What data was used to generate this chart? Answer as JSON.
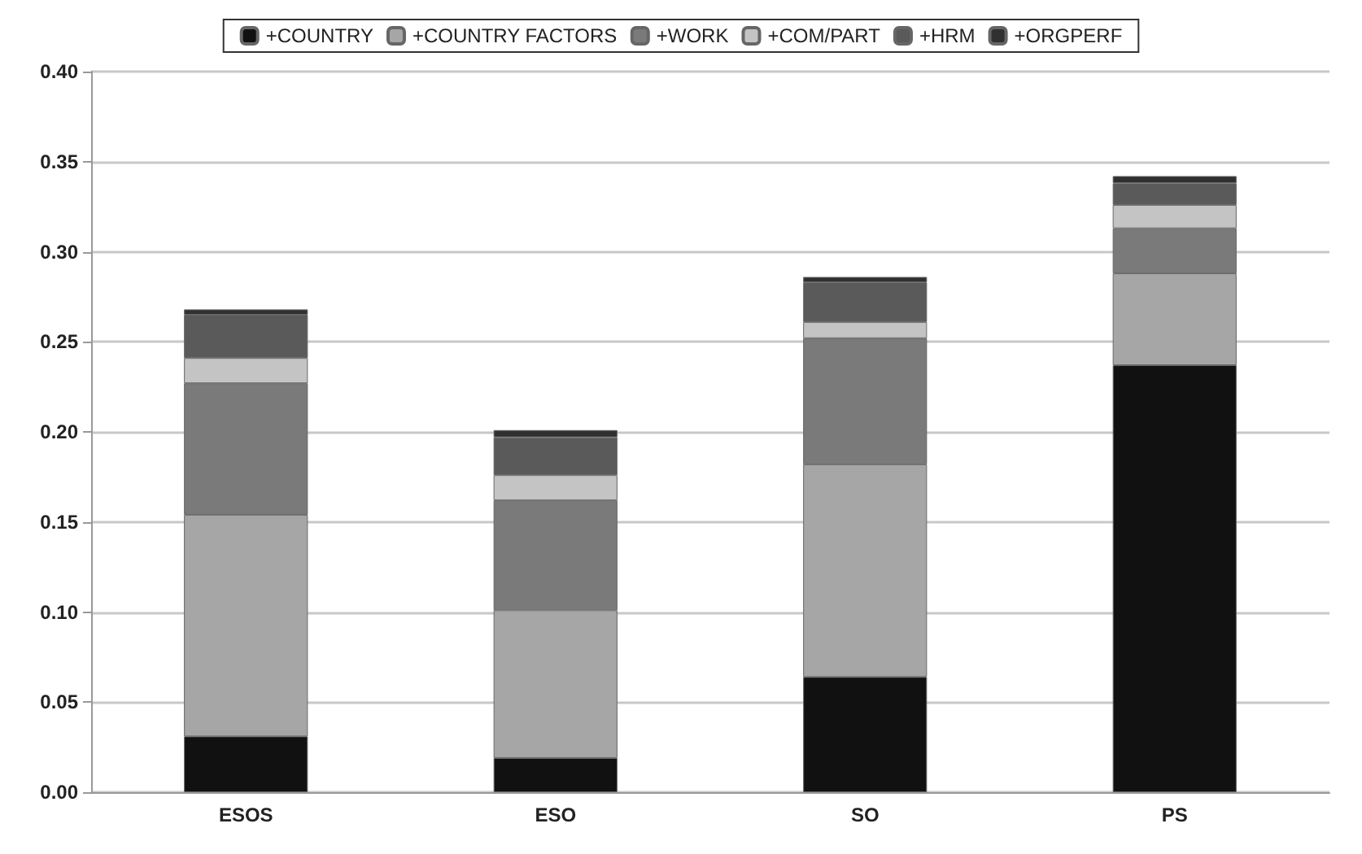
{
  "chart_data": {
    "type": "bar",
    "stacked": true,
    "categories": [
      "ESOS",
      "ESO",
      "SO",
      "PS"
    ],
    "series": [
      {
        "name": "+COUNTRY",
        "color": "#111111",
        "values": [
          0.031,
          0.019,
          0.064,
          0.237
        ]
      },
      {
        "name": "+COUNTRY FACTORS",
        "color": "#a6a6a6",
        "values": [
          0.123,
          0.082,
          0.118,
          0.051
        ]
      },
      {
        "name": "+WORK",
        "color": "#7a7a7a",
        "values": [
          0.073,
          0.061,
          0.07,
          0.025
        ]
      },
      {
        "name": "+COM/PART",
        "color": "#c4c4c4",
        "values": [
          0.014,
          0.014,
          0.009,
          0.013
        ]
      },
      {
        "name": "+HRM",
        "color": "#5a5a5a",
        "values": [
          0.024,
          0.021,
          0.022,
          0.012
        ]
      },
      {
        "name": "+ORGPERF",
        "color": "#303030",
        "values": [
          0.003,
          0.004,
          0.003,
          0.004
        ]
      }
    ],
    "ylim": [
      0,
      0.4
    ],
    "yticks": [
      {
        "value": 0,
        "label": "0.00"
      },
      {
        "value": 0.05,
        "label": "0.05"
      },
      {
        "value": 0.1,
        "label": "0.10"
      },
      {
        "value": 0.15,
        "label": "0.15"
      },
      {
        "value": 0.2,
        "label": "0.20"
      },
      {
        "value": 0.25,
        "label": "0.25"
      },
      {
        "value": 0.3,
        "label": "0.30"
      },
      {
        "value": 0.35,
        "label": "0.35"
      },
      {
        "value": 0.4,
        "label": "0.40"
      }
    ],
    "grid": "y",
    "legend": "top"
  }
}
